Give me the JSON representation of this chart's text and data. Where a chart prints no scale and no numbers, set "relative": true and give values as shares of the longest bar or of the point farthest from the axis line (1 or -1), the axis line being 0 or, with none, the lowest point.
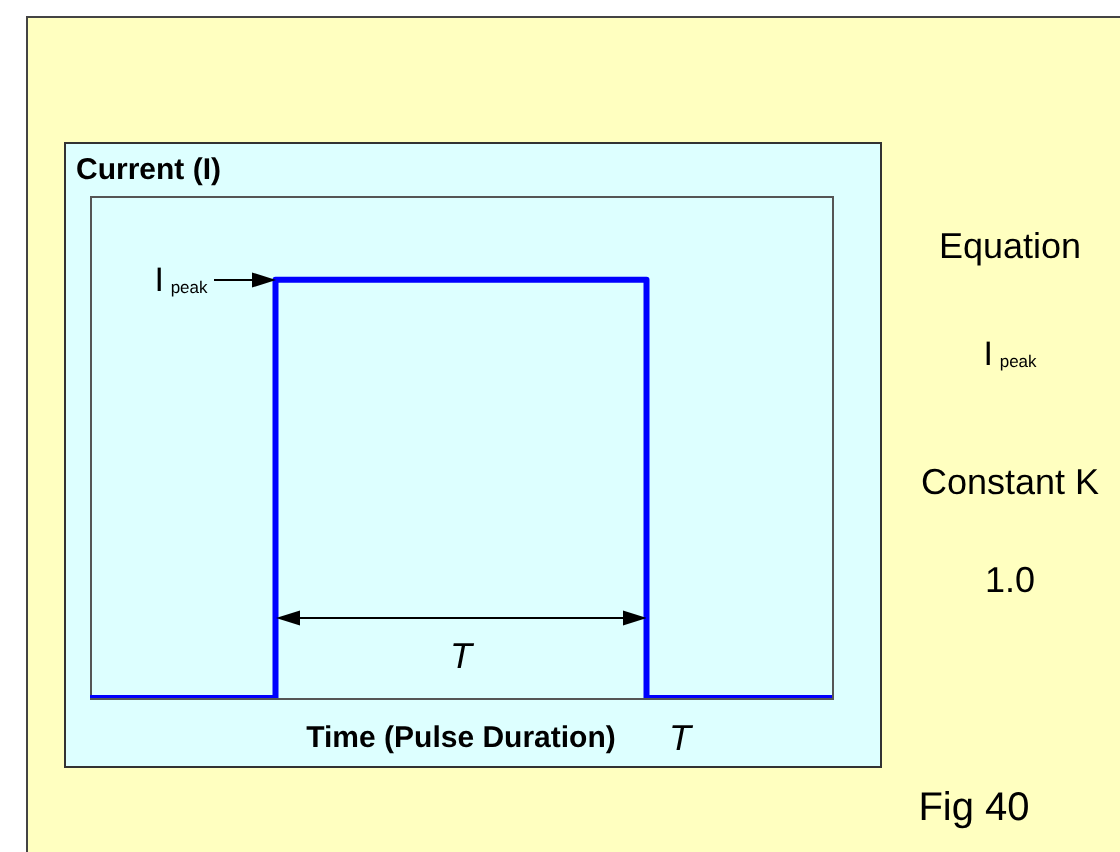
{
  "chart_data": {
    "type": "step",
    "ylabel": "Current (I)",
    "xlabel": "Time (Pulse Duration)",
    "categories": [
      null,
      null,
      null
    ],
    "values": [
      0,
      1,
      0
    ],
    "color": "#0000ff",
    "relative": true,
    "tick_labels": false,
    "annotations": [
      "I$_{peak}$",
      "T",
      "T",
      "Equation",
      "I$_{peak}$",
      "Constant K",
      "1.0",
      "Fig 40"
    ]
  }
}
